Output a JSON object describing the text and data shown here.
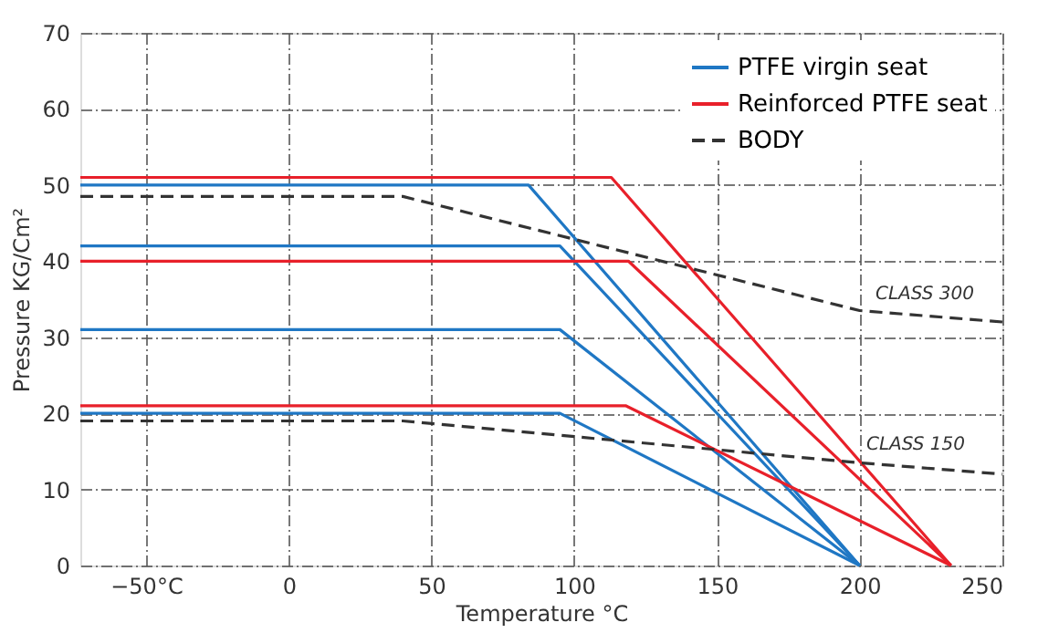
{
  "chart_data": {
    "type": "line",
    "xlabel": "Temperature °C",
    "ylabel": "Pressure KG/Cm²",
    "xlim": [
      -73,
      250
    ],
    "ylim": [
      0,
      70
    ],
    "xticks": [
      {
        "value": -50,
        "label": "−50°C"
      },
      0,
      50,
      100,
      150,
      200,
      250
    ],
    "yticks": [
      0,
      10,
      20,
      30,
      40,
      50,
      60,
      70
    ],
    "grid": true,
    "legend": "top right",
    "marker": "none",
    "series": [
      {
        "name": "PTFE virgin seat",
        "color": "#1f77c4",
        "x": [
          -73,
          84,
          200
        ],
        "values": [
          50,
          50,
          0
        ],
        "line_style": "solid"
      },
      {
        "color": "#1f77c4",
        "x": [
          -73,
          95,
          200
        ],
        "values": [
          42,
          42,
          0
        ],
        "line_style": "solid"
      },
      {
        "color": "#1f77c4",
        "x": [
          -73,
          95,
          200
        ],
        "values": [
          31,
          31,
          0
        ],
        "line_style": "solid"
      },
      {
        "color": "#1f77c4",
        "x": [
          -73,
          95,
          200
        ],
        "values": [
          20,
          20,
          0
        ],
        "line_style": "solid"
      },
      {
        "name": "Reinforced PTFE seat",
        "color": "#e8202a",
        "x": [
          -73,
          113,
          232
        ],
        "values": [
          51,
          51,
          0
        ],
        "line_style": "solid"
      },
      {
        "color": "#e8202a",
        "x": [
          -73,
          119,
          232
        ],
        "values": [
          40,
          40,
          0
        ],
        "line_style": "solid"
      },
      {
        "color": "#e8202a",
        "x": [
          -73,
          118,
          232
        ],
        "values": [
          21,
          21,
          0
        ],
        "line_style": "solid"
      },
      {
        "name": "BODY",
        "color": "#333333",
        "x": [
          -73,
          40,
          200,
          250
        ],
        "values": [
          48.5,
          48.5,
          33.5,
          32
        ],
        "line_style": "dashed"
      },
      {
        "color": "#333333",
        "x": [
          -73,
          40,
          200,
          250
        ],
        "values": [
          19,
          19,
          13.5,
          12
        ],
        "line_style": "dashed"
      }
    ],
    "annotations": [
      "CLASS 300",
      "CLASS 150"
    ]
  }
}
